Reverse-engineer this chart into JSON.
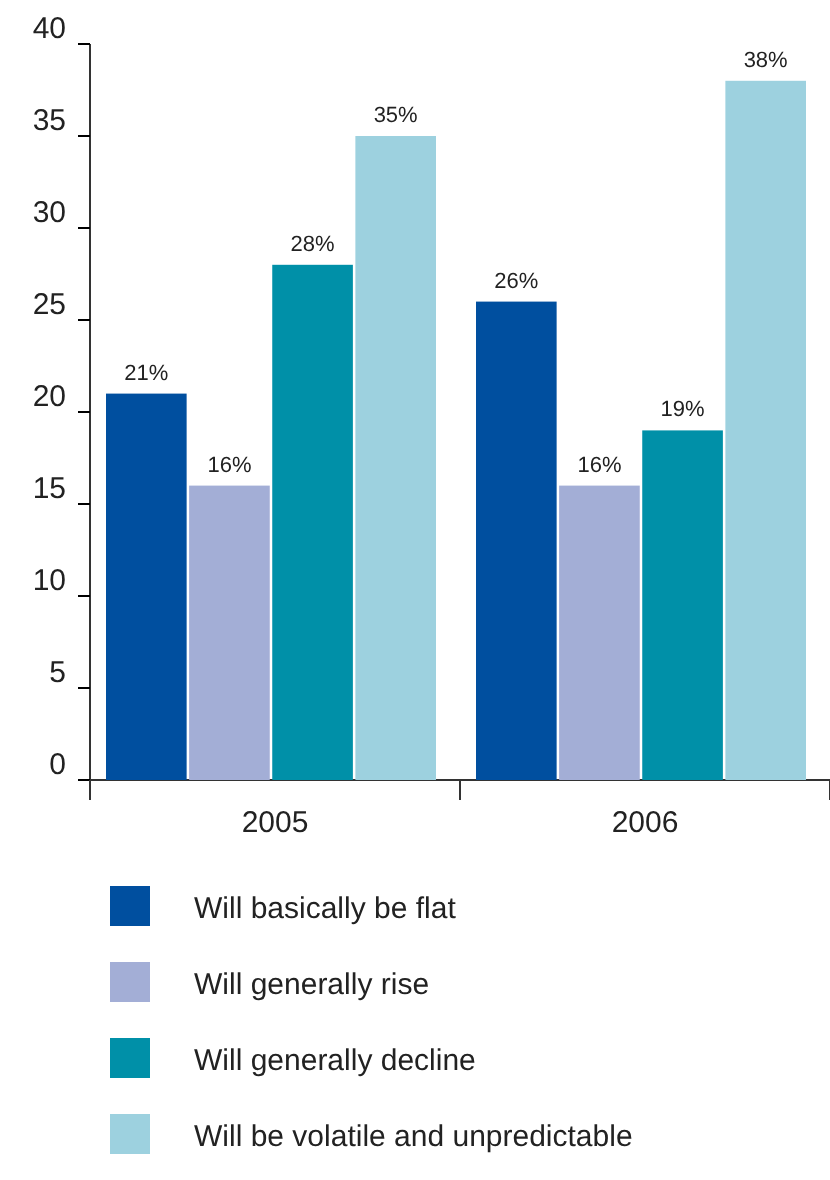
{
  "chart_data": {
    "type": "bar",
    "categories": [
      "2005",
      "2006"
    ],
    "series": [
      {
        "name": "Will basically be flat",
        "color": "#004f9f",
        "values": [
          21,
          26
        ],
        "value_labels": [
          "21%",
          "26%"
        ]
      },
      {
        "name": "Will generally rise",
        "color": "#a3aed6",
        "values": [
          16,
          16
        ],
        "value_labels": [
          "16%",
          "16%"
        ]
      },
      {
        "name": "Will generally decline",
        "color": "#0090a8",
        "values": [
          28,
          19
        ],
        "value_labels": [
          "28%",
          "19%"
        ]
      },
      {
        "name": "Will be volatile and unpredictable",
        "color": "#9dd1df",
        "values": [
          35,
          38
        ],
        "value_labels": [
          "35%",
          "38%"
        ]
      }
    ],
    "ylim": [
      0,
      40
    ],
    "yticks": [
      0,
      5,
      10,
      15,
      20,
      25,
      30,
      35,
      40
    ],
    "grid": false,
    "legend": "bottom"
  }
}
